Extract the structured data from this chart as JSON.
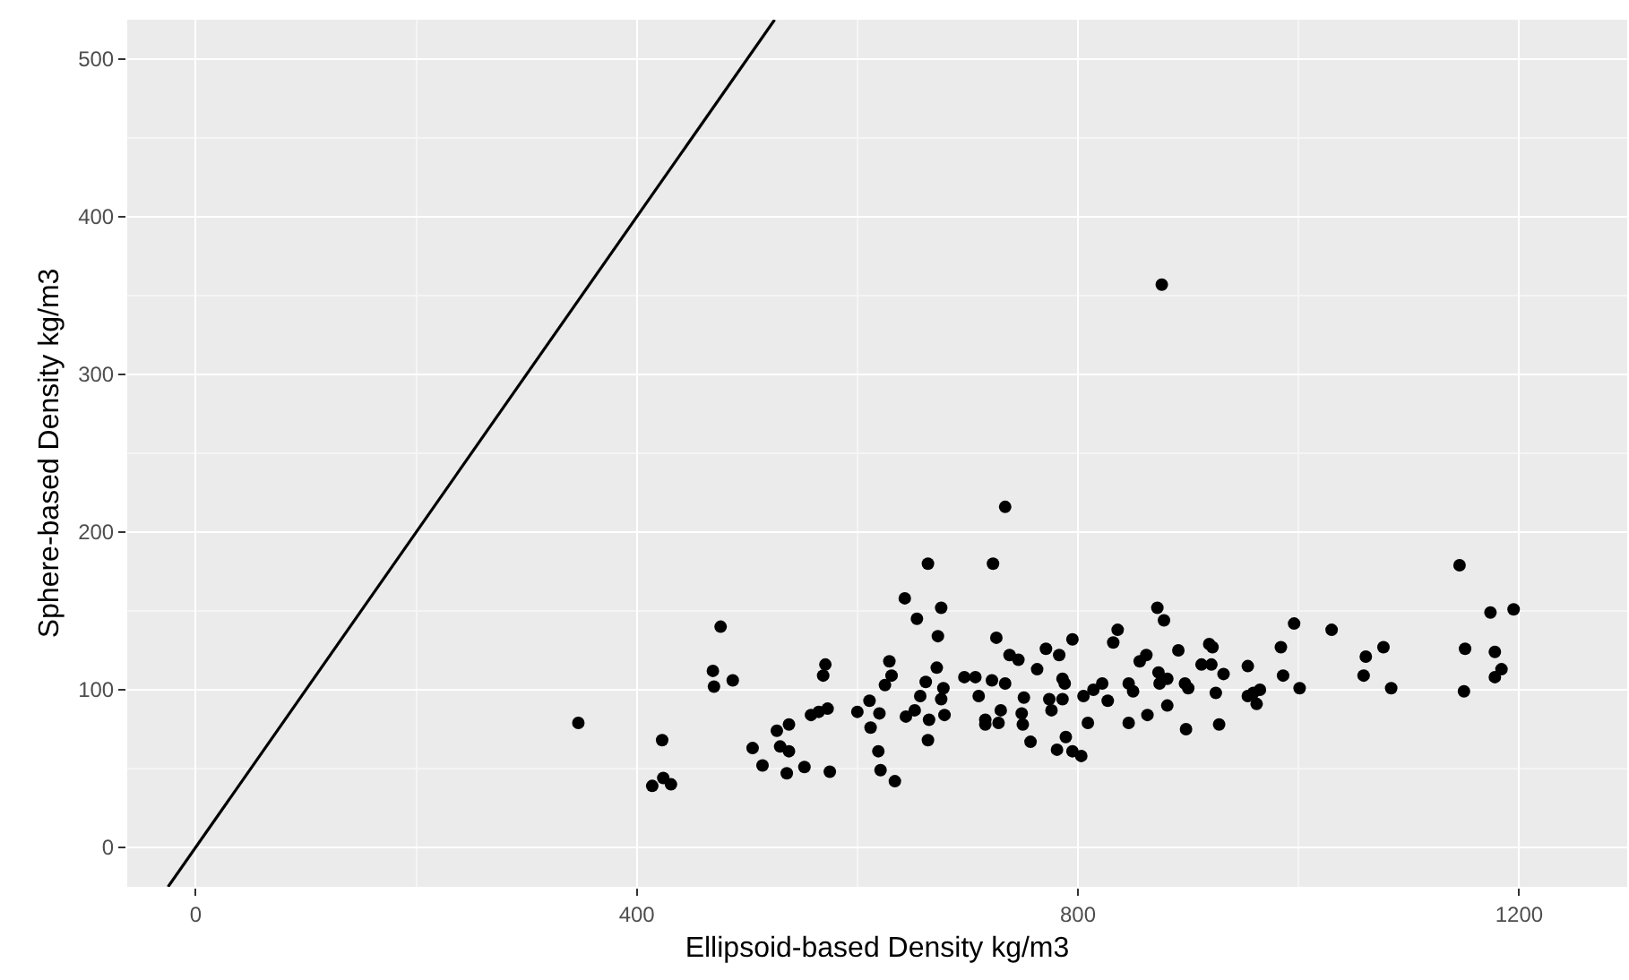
{
  "chart_data": {
    "type": "scatter",
    "xlabel": "Ellipsoid-based Density kg/m3",
    "ylabel": "Sphere-based Density kg/m3",
    "xlim": [
      -62,
      1298
    ],
    "ylim": [
      -25,
      525
    ],
    "xticks": [
      0,
      400,
      800,
      1200
    ],
    "yticks": [
      0,
      100,
      200,
      300,
      400,
      500
    ],
    "grid": true,
    "series": [
      {
        "marker": "circle",
        "color": "#000000",
        "x": [
          347,
          423,
          414,
          424,
          431,
          476,
          469,
          470,
          487,
          505,
          514,
          527,
          538,
          530,
          538,
          536,
          552,
          558,
          565,
          573,
          571,
          569,
          575,
          600,
          611,
          612,
          620,
          619,
          621,
          634,
          629,
          631,
          625,
          643,
          644,
          652,
          657,
          654,
          664,
          662,
          665,
          664,
          676,
          673,
          672,
          678,
          676,
          679,
          697,
          707,
          710,
          723,
          734,
          726,
          722,
          734,
          716,
          716,
          730,
          728,
          738,
          746,
          751,
          749,
          750,
          757,
          763,
          771,
          783,
          786,
          788,
          774,
          776,
          786,
          809,
          789,
          781,
          795,
          803,
          795,
          805,
          814,
          822,
          827,
          832,
          836,
          846,
          850,
          846,
          856,
          862,
          863,
          872,
          878,
          876,
          873,
          874,
          881,
          881,
          891,
          897,
          900,
          898,
          912,
          919,
          922,
          921,
          932,
          925,
          928,
          954,
          954,
          959,
          965,
          962,
          984,
          986,
          996,
          1001,
          1030,
          1061,
          1077,
          1059,
          1084,
          1146,
          1151,
          1150,
          1174,
          1178,
          1184,
          1178,
          1195
        ],
        "values": [
          79,
          68,
          39,
          44,
          40,
          140,
          112,
          102,
          106,
          63,
          52,
          74,
          78,
          64,
          61,
          47,
          51,
          84,
          86,
          88,
          116,
          109,
          48,
          86,
          93,
          76,
          85,
          61,
          49,
          42,
          118,
          109,
          103,
          158,
          83,
          87,
          96,
          145,
          180,
          105,
          81,
          68,
          152,
          134,
          114,
          101,
          94,
          84,
          108,
          108,
          96,
          180,
          216,
          133,
          106,
          104,
          81,
          78,
          87,
          79,
          122,
          119,
          95,
          85,
          78,
          67,
          113,
          126,
          122,
          107,
          104,
          94,
          87,
          94,
          79,
          70,
          62,
          61,
          58,
          132,
          96,
          100,
          104,
          93,
          130,
          138,
          104,
          99,
          79,
          118,
          122,
          84,
          152,
          144,
          357,
          111,
          104,
          107,
          90,
          125,
          104,
          101,
          75,
          116,
          129,
          127,
          116,
          110,
          98,
          78,
          115,
          96,
          98,
          100,
          91,
          127,
          109,
          142,
          101,
          138,
          121,
          127,
          109,
          101,
          179,
          126,
          99,
          149,
          124,
          113,
          108,
          151
        ]
      },
      {
        "type": "line",
        "marker": "none",
        "color": "#000000",
        "x": [
          -25,
          525
        ],
        "values": [
          -25,
          525
        ]
      }
    ]
  }
}
